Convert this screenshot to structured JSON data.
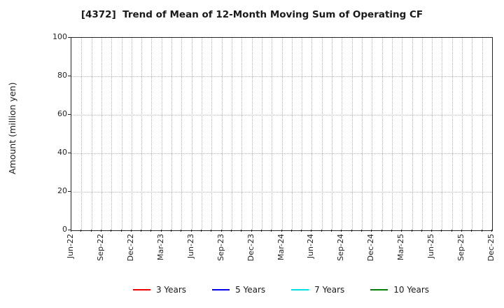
{
  "chart_data": {
    "type": "line",
    "title": "[4372]  Trend of Mean of 12-Month Moving Sum of Operating CF",
    "ylabel": "Amount (million yen)",
    "ylim": [
      0,
      100
    ],
    "yticks": [
      0,
      20,
      40,
      60,
      80,
      100
    ],
    "x_tick_labels": [
      "Jun-22",
      "Sep-22",
      "Dec-22",
      "Mar-23",
      "Jun-23",
      "Sep-23",
      "Dec-23",
      "Mar-24",
      "Jun-24",
      "Sep-24",
      "Dec-24",
      "Mar-25",
      "Jun-25",
      "Sep-25",
      "Dec-25"
    ],
    "months_per_major_tick": 3,
    "total_month_intervals": 42,
    "grid": {
      "visible": true,
      "style": "dotted",
      "color": "#b3b3b3"
    },
    "legend": {
      "position": "bottom-center"
    },
    "series": [
      {
        "name": "3 Years",
        "color": "#ee0000",
        "values": []
      },
      {
        "name": "5 Years",
        "color": "#0000ee",
        "values": []
      },
      {
        "name": "7 Years",
        "color": "#00e0e0",
        "values": []
      },
      {
        "name": "10 Years",
        "color": "#008000",
        "values": []
      }
    ]
  },
  "colors": {
    "axis_border": "#262626",
    "tick_text": "#262626",
    "title_text": "#1a1a1a",
    "background": "#ffffff"
  }
}
